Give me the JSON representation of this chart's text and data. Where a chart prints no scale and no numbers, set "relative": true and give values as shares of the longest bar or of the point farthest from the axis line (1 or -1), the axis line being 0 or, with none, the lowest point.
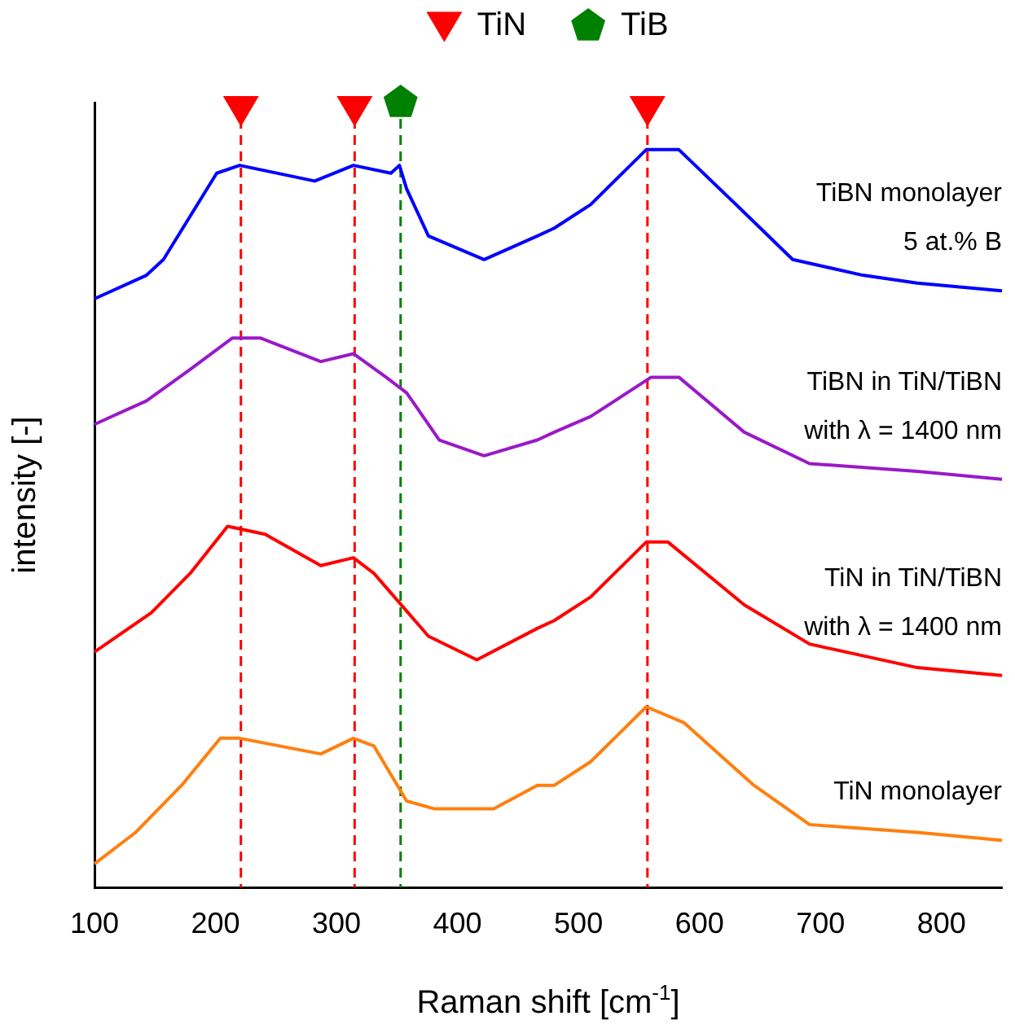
{
  "chart_data": {
    "type": "line",
    "relative": true,
    "xlabel": "Raman shift [cm$^{-1}$]",
    "ylabel": "intensity [-]",
    "xlim": [
      100,
      850
    ],
    "xticks": [
      100,
      200,
      300,
      400,
      500,
      600,
      700,
      800
    ],
    "grid": false,
    "legend": "top",
    "marker": "none",
    "series": [
      {
        "name": "TiBN monolayer\n5 at.% B",
        "color": "#0000ff",
        "x": [
          100,
          143,
          157,
          201,
          220,
          282,
          314,
          345,
          352,
          358,
          376,
          422,
          466,
          480,
          510,
          556,
          583,
          637,
          677,
          735,
          780,
          850
        ],
        "values": [
          0.75,
          0.78,
          0.8,
          0.91,
          0.92,
          0.9,
          0.92,
          0.91,
          0.92,
          0.89,
          0.83,
          0.8,
          0.83,
          0.84,
          0.87,
          0.94,
          0.94,
          0.86,
          0.8,
          0.78,
          0.77,
          0.76
        ]
      },
      {
        "name": "TiBN in TiN/TiBN\nwith λ = 1400 nm",
        "color": "#9a19c8",
        "x": [
          100,
          143,
          179,
          214,
          237,
          287,
          314,
          341,
          358,
          385,
          422,
          466,
          480,
          510,
          560,
          583,
          637,
          691,
          780,
          850
        ],
        "values": [
          0.59,
          0.62,
          0.66,
          0.7,
          0.7,
          0.67,
          0.68,
          0.65,
          0.63,
          0.57,
          0.55,
          0.57,
          0.58,
          0.6,
          0.65,
          0.65,
          0.58,
          0.54,
          0.53,
          0.52
        ]
      },
      {
        "name": "TiN in TiN/TiBN\nwith λ = 1400 nm",
        "color": "#ff0000",
        "x": [
          100,
          147,
          179,
          210,
          241,
          287,
          314,
          331,
          376,
          416,
          466,
          480,
          510,
          556,
          574,
          637,
          691,
          780,
          850
        ],
        "values": [
          0.3,
          0.35,
          0.4,
          0.46,
          0.45,
          0.41,
          0.42,
          0.4,
          0.32,
          0.29,
          0.33,
          0.34,
          0.37,
          0.44,
          0.44,
          0.36,
          0.31,
          0.28,
          0.27
        ]
      },
      {
        "name": "TiN monolayer",
        "color": "#ff7f0e",
        "x": [
          100,
          134,
          172,
          204,
          220,
          287,
          314,
          331,
          358,
          381,
          430,
          466,
          480,
          510,
          556,
          587,
          645,
          691,
          780,
          850
        ],
        "values": [
          0.03,
          0.07,
          0.13,
          0.19,
          0.19,
          0.17,
          0.19,
          0.18,
          0.11,
          0.1,
          0.1,
          0.13,
          0.13,
          0.16,
          0.23,
          0.21,
          0.13,
          0.08,
          0.07,
          0.06
        ]
      },
      {
        "name": "TiN",
        "type": "scatter",
        "marker": "triangle",
        "color": "#ff0000",
        "x": [
          221,
          315,
          557
        ],
        "values": [
          0.99,
          0.99,
          0.99
        ]
      },
      {
        "name": "TiB",
        "type": "scatter",
        "color": "#008000",
        "x": [
          353
        ],
        "values": [
          1
        ]
      }
    ],
    "ref_lines": [
      {
        "axis": "x",
        "value": 221,
        "color": "#ff0000",
        "line_style": "dashed"
      },
      {
        "axis": "x",
        "value": 315,
        "color": "#ff0000",
        "line_style": "dashed"
      },
      {
        "axis": "x",
        "value": 557,
        "color": "#ff0000",
        "line_style": "dashed"
      },
      {
        "axis": "x",
        "value": 353,
        "color": "#008000",
        "line_style": "dashed"
      }
    ]
  }
}
